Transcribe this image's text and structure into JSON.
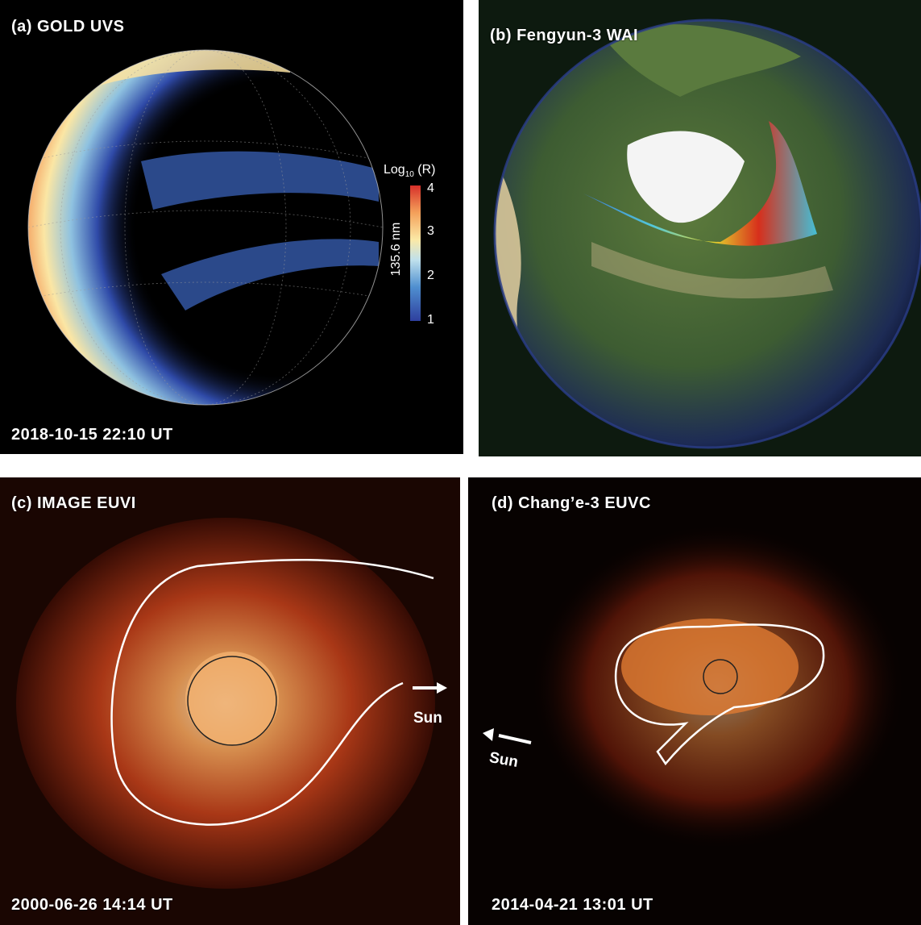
{
  "panels": {
    "a": {
      "title": "(a) GOLD UVS",
      "timestamp": "2018-10-15 22:10 UT",
      "colorbar": {
        "label_prefix": "Log",
        "label_sub": "10",
        "label_suffix": "(R)",
        "axis_label": "135.6 nm",
        "ticks": [
          "4",
          "3",
          "2",
          "1"
        ],
        "colors": [
          "#2e3f9e",
          "#4f8fd0",
          "#bfe0ec",
          "#fbe9a6",
          "#f4a05a",
          "#d7302a"
        ]
      }
    },
    "b": {
      "title": "(b) Fengyun-3 WAI"
    },
    "c": {
      "title": "(c) IMAGE EUVI",
      "timestamp": "2000-06-26 14:14 UT",
      "sun_label": "Sun"
    },
    "d": {
      "title": "(d) Chang’e-3 EUVC",
      "timestamp": "2014-04-21 13:01 UT",
      "sun_label": "Sun"
    }
  }
}
